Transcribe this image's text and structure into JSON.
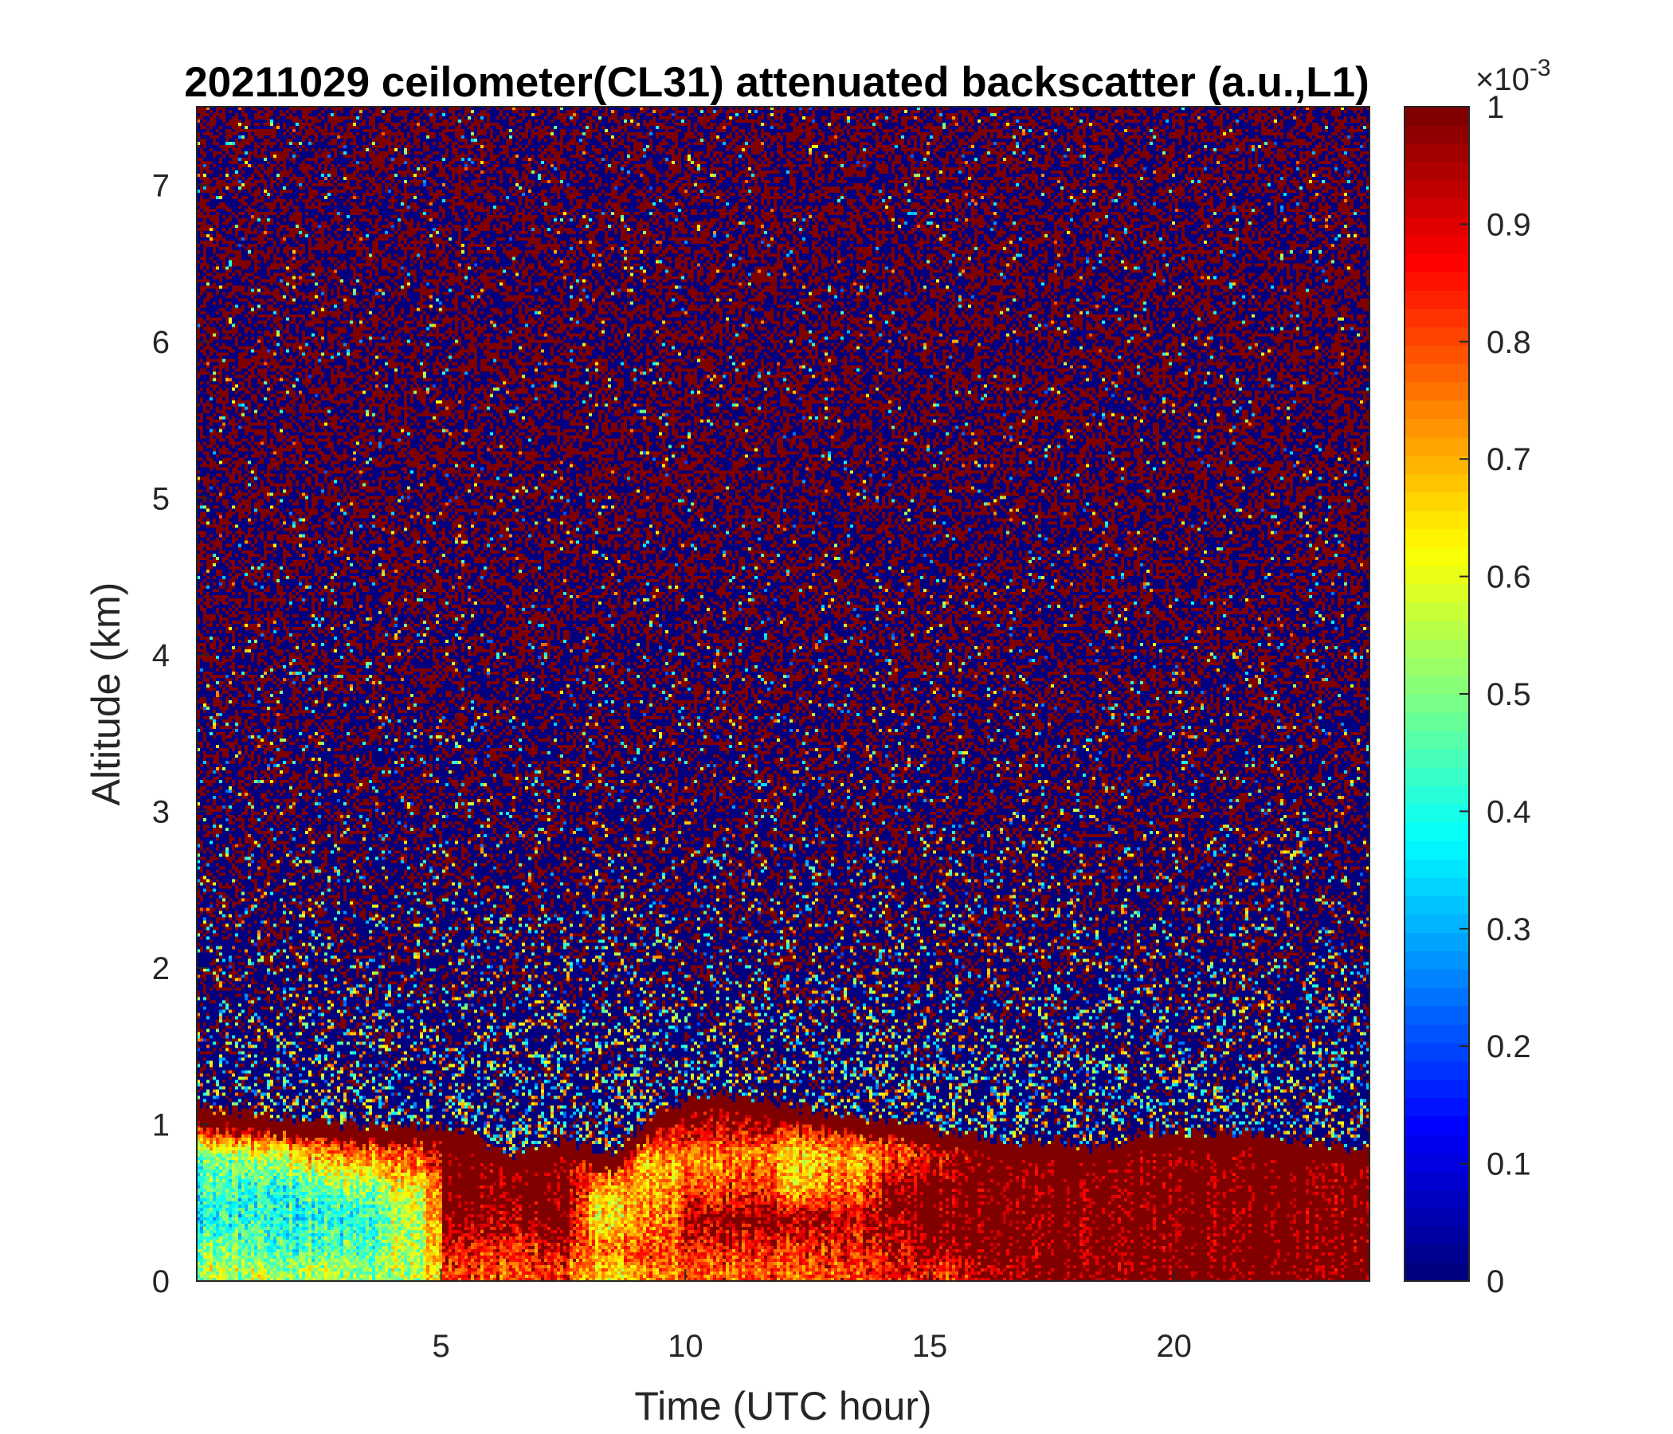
{
  "chart_data": {
    "type": "heatmap",
    "title": "20211029 ceilometer(CL31) attenuated backscatter (a.u.,L1)",
    "xlabel": "Time (UTC hour)",
    "ylabel": "Altitude (km)",
    "xlim": [
      0,
      24
    ],
    "ylim": [
      0,
      7.5
    ],
    "xticks": [
      5,
      10,
      15,
      20
    ],
    "yticks": [
      0,
      1,
      2,
      3,
      4,
      5,
      6,
      7
    ],
    "colormap": "jet",
    "colorbar": {
      "clim": [
        0,
        1
      ],
      "multiplier_label": "×10",
      "multiplier_exponent": "-3",
      "ticks": [
        0,
        0.1,
        0.2,
        0.3,
        0.4,
        0.5,
        0.6,
        0.7,
        0.8,
        0.9,
        1
      ],
      "tick_labels": [
        "0",
        "0.1",
        "0.2",
        "0.3",
        "0.4",
        "0.5",
        "0.6",
        "0.7",
        "0.8",
        "0.9",
        "1"
      ]
    },
    "grid": false,
    "hours": [
      0.5,
      1.5,
      2.5,
      3.5,
      4.5,
      5.5,
      6.5,
      7.5,
      8.5,
      9.5,
      10.5,
      11.5,
      12.5,
      13.5,
      14.5,
      15.5,
      16.5,
      17.5,
      18.5,
      19.5,
      20.5,
      21.5,
      22.5,
      23.5
    ],
    "layer_top_km": [
      1.1,
      1.05,
      1.0,
      1.0,
      1.0,
      0.95,
      0.8,
      0.9,
      0.8,
      1.1,
      1.2,
      1.15,
      1.1,
      1.05,
      1.0,
      0.95,
      0.9,
      0.9,
      0.85,
      0.95,
      0.95,
      0.95,
      0.9,
      0.85
    ],
    "layer_altitudes_km": [
      0.05,
      0.2,
      0.4,
      0.6,
      0.8,
      1.0
    ],
    "layer_values": [
      [
        0.55,
        0.5,
        0.4,
        0.45,
        0.5,
        0.95
      ],
      [
        0.55,
        0.45,
        0.4,
        0.4,
        0.55,
        0.95
      ],
      [
        0.55,
        0.45,
        0.4,
        0.45,
        0.7,
        0.95
      ],
      [
        0.5,
        0.45,
        0.4,
        0.5,
        0.75,
        0.95
      ],
      [
        0.55,
        0.55,
        0.55,
        0.6,
        0.8,
        0.95
      ],
      [
        0.8,
        0.85,
        0.95,
        1,
        1,
        1
      ],
      [
        0.8,
        0.85,
        0.95,
        1,
        1,
        1
      ],
      [
        0.8,
        0.9,
        1,
        1,
        0.95,
        0.6
      ],
      [
        0.65,
        0.75,
        0.6,
        0.7,
        0.9,
        0.6
      ],
      [
        0.75,
        0.8,
        0.75,
        0.7,
        0.7,
        0.95
      ],
      [
        0.8,
        0.85,
        0.95,
        0.8,
        0.75,
        0.95
      ],
      [
        0.8,
        0.85,
        1,
        0.85,
        0.75,
        0.95
      ],
      [
        0.8,
        0.85,
        0.95,
        0.7,
        0.65,
        0.9
      ],
      [
        0.8,
        0.85,
        0.9,
        0.75,
        0.7,
        0.9
      ],
      [
        0.85,
        0.9,
        0.95,
        0.95,
        0.8,
        0.9
      ],
      [
        0.85,
        0.95,
        1,
        1,
        0.9,
        0.9
      ],
      [
        0.95,
        1,
        1,
        1,
        1,
        0.9
      ],
      [
        1,
        1,
        1,
        1,
        1,
        1
      ],
      [
        1,
        1,
        1,
        1,
        1,
        1
      ],
      [
        1,
        1,
        1,
        1,
        1,
        1
      ],
      [
        1,
        1,
        1,
        1,
        1,
        1
      ],
      [
        1,
        1,
        1,
        1,
        1,
        1
      ],
      [
        1,
        1,
        1,
        1,
        1,
        1
      ],
      [
        1,
        1,
        1,
        1,
        1,
        1
      ]
    ],
    "noise_altitudes_km": [
      1.0,
      1.5,
      2.0,
      3.0,
      5.0,
      7.5
    ],
    "noise_high_fraction": [
      0.15,
      0.2,
      0.3,
      0.4,
      0.5,
      0.5
    ],
    "noise_speckle_fraction": [
      0.3,
      0.2,
      0.12,
      0.06,
      0.03,
      0.03
    ]
  }
}
